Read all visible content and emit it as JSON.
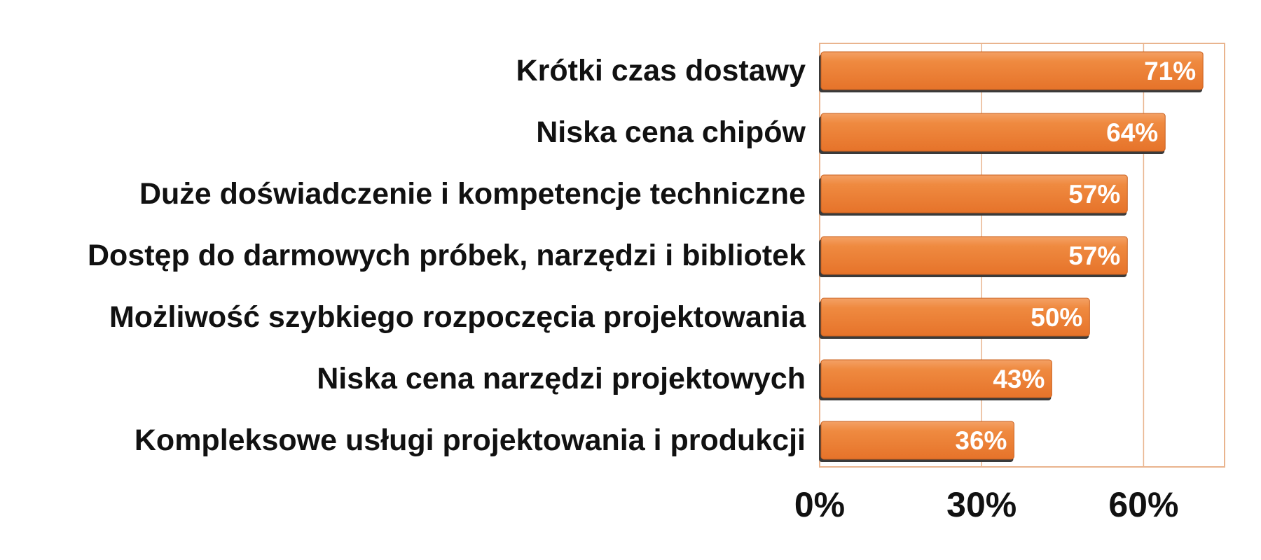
{
  "colors": {
    "bar": "#ee8236",
    "bar_shadow": "#3a3a3a",
    "frame": "#e9b48e",
    "value_text": "#ffffff"
  },
  "chart_data": {
    "type": "bar",
    "orientation": "horizontal",
    "categories": [
      "Krótki czas dostawy",
      "Niska cena chipów",
      "Duże doświadczenie i kompetencje techniczne",
      "Dostęp do darmowych próbek, narzędzi i bibliotek",
      "Możliwość szybkiego rozpoczęcia projektowania",
      "Niska cena narzędzi projektowych",
      "Kompleksowe usługi projektowania i produkcji"
    ],
    "values": [
      71,
      64,
      57,
      57,
      50,
      43,
      36
    ],
    "value_labels": [
      "71%",
      "64%",
      "57%",
      "57%",
      "50%",
      "43%",
      "36%"
    ],
    "x_ticks": [
      0,
      30,
      60
    ],
    "x_tick_labels": [
      "0%",
      "30%",
      "60%"
    ],
    "xlim": [
      0,
      75
    ],
    "grid": true,
    "legend": "none"
  }
}
